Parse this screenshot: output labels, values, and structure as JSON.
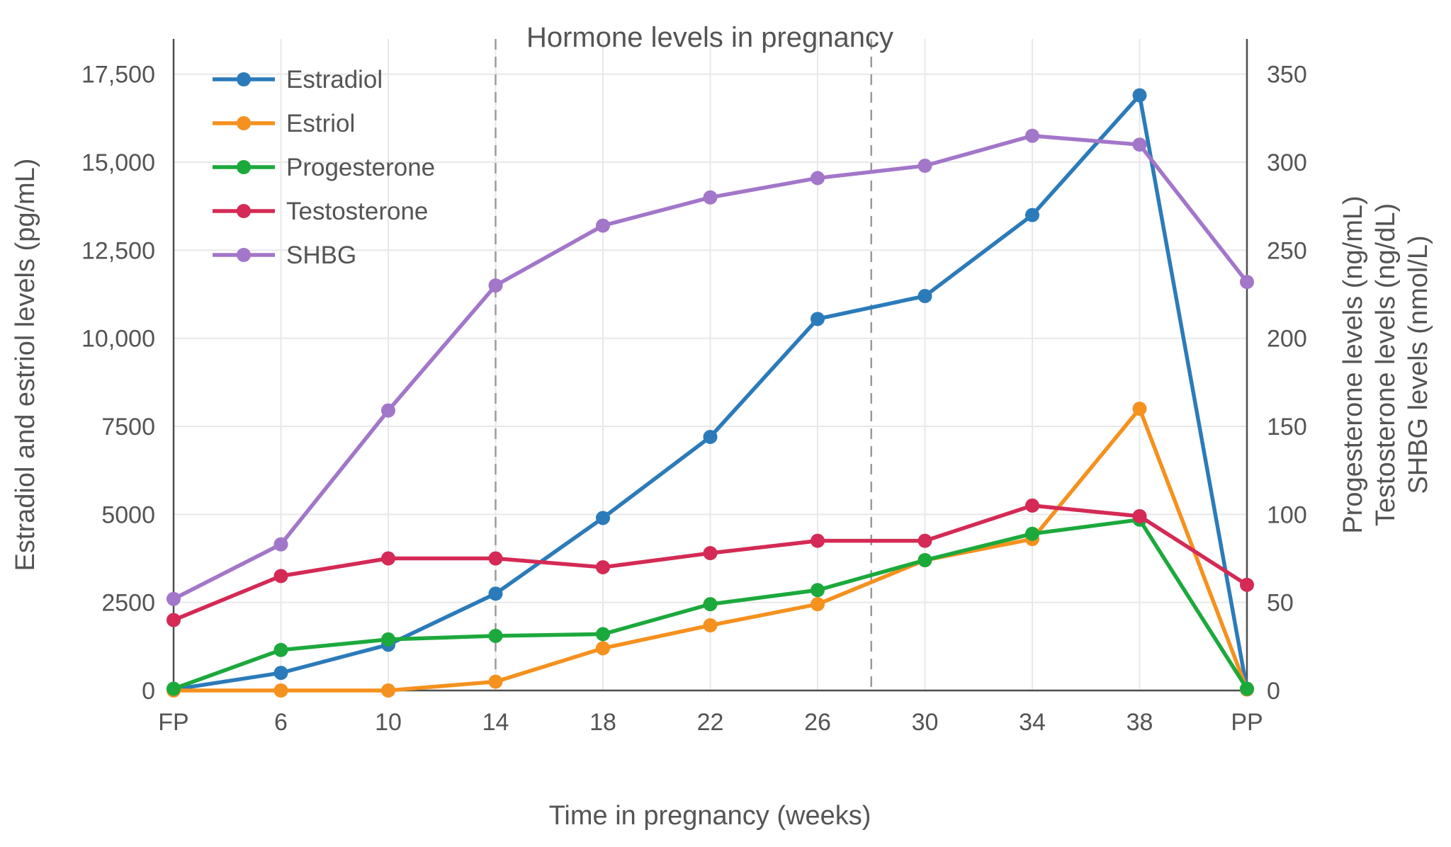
{
  "chart_data": {
    "type": "line",
    "title": "Hormone levels in pregnancy",
    "xlabel": "Time in pregnancy (weeks)",
    "ylabel_left": "Estradiol and estriol levels (pg/mL)",
    "ylabels_right": [
      "Progesterone levels (ng/mL)",
      "Testosterone levels (ng/dL)",
      "SHBG levels (nmol/L)"
    ],
    "categories": [
      "FP",
      "6",
      "10",
      "14",
      "18",
      "22",
      "26",
      "30",
      "34",
      "38",
      "PP"
    ],
    "series": [
      {
        "name": "Estradiol",
        "axis": "left",
        "unit": "pg/mL",
        "color": "#2b7bba",
        "values": [
          30,
          500,
          1300,
          2750,
          4900,
          7200,
          10550,
          11200,
          13500,
          16900,
          30
        ]
      },
      {
        "name": "Estriol",
        "axis": "left",
        "unit": "pg/mL",
        "color": "#f5911e",
        "values": [
          0,
          0,
          0,
          250,
          1200,
          1850,
          2450,
          3700,
          4300,
          8000,
          30
        ]
      },
      {
        "name": "Progesterone",
        "axis": "right",
        "unit": "ng/mL",
        "color": "#1ca93c",
        "values": [
          1,
          23,
          29,
          31,
          32,
          49,
          57,
          74,
          89,
          97,
          1
        ]
      },
      {
        "name": "Testosterone",
        "axis": "right",
        "unit": "ng/dL",
        "color": "#d42a55",
        "values": [
          40,
          65,
          75,
          75,
          70,
          78,
          85,
          85,
          105,
          99,
          60
        ]
      },
      {
        "name": "SHBG",
        "axis": "right",
        "unit": "nmol/L",
        "color": "#a276c9",
        "values": [
          52,
          83,
          159,
          230,
          264,
          280,
          291,
          298,
          315,
          310,
          232
        ]
      }
    ],
    "left_axis": {
      "range": [
        0,
        18500
      ],
      "ticks": [
        0,
        2500,
        5000,
        7500,
        10000,
        12500,
        15000,
        17500
      ],
      "tick_labels": [
        "0",
        "2500",
        "5000",
        "7500",
        "10,000",
        "12,500",
        "15,000",
        "17,500"
      ]
    },
    "right_axis": {
      "range": [
        0,
        370
      ],
      "ticks": [
        0,
        50,
        100,
        150,
        200,
        250,
        300,
        350
      ],
      "tick_labels": [
        "0",
        "50",
        "100",
        "150",
        "200",
        "250",
        "300",
        "350"
      ]
    },
    "dashed_vline_indices": [
      3,
      6.5
    ],
    "legend_position": "top-left",
    "grid": true
  }
}
